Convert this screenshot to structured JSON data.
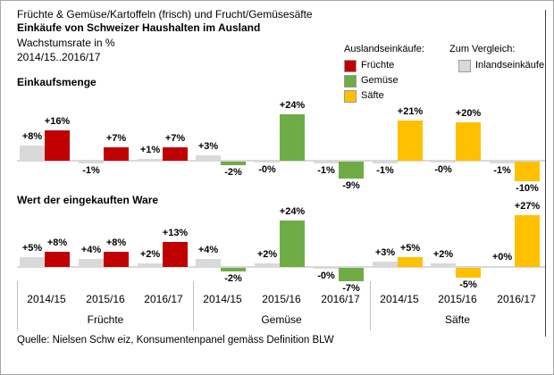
{
  "title": {
    "line1": "Früchte & Gemüse/Kartoffeln (frisch) und Frucht/Gemüsesäfte",
    "line2": "Einkäufe von Schweizer Haushalten im Ausland",
    "line3": "Wachstumsrate in %",
    "line4": "2014/15..2016/17"
  },
  "legend": {
    "foreign_header": "Auslandseinkäufe:",
    "compare_header": "Zum Vergleich:",
    "items": [
      {
        "label": "Früchte",
        "color": "#C00000"
      },
      {
        "label": "Gemüse",
        "color": "#6FAC46"
      },
      {
        "label": "Säfte",
        "color": "#FFC000"
      }
    ],
    "compare_item": {
      "label": "Inlandseinkäufe",
      "color": "#D9D9D9"
    }
  },
  "colors": {
    "inland": "#D9D9D9",
    "baseline": "#D9D9D9",
    "separator": "#BFBFBF",
    "frame": "#404040"
  },
  "chart_data": [
    {
      "type": "bar",
      "title": "Einkaufsmenge",
      "unit": "%",
      "ylim": [
        -10,
        24
      ],
      "grid": false,
      "legend_position": "top-right",
      "categories": [
        "2014/15",
        "2015/16",
        "2016/17"
      ],
      "groups": [
        {
          "name": "Früchte",
          "color": "#C00000",
          "series": [
            {
              "name": "Inlandseinkäufe",
              "values": [
                8,
                -1,
                1
              ],
              "labels": [
                "+8%",
                "-1%",
                "+1%"
              ]
            },
            {
              "name": "Auslandseinkäufe",
              "values": [
                16,
                7,
                7
              ],
              "labels": [
                "+16%",
                "+7%",
                "+7%"
              ]
            }
          ]
        },
        {
          "name": "Gemüse",
          "color": "#6FAC46",
          "series": [
            {
              "name": "Inlandseinkäufe",
              "values": [
                3,
                0,
                -1
              ],
              "labels": [
                "+3%",
                "-0%",
                "-1%"
              ]
            },
            {
              "name": "Auslandseinkäufe",
              "values": [
                -2,
                24,
                -9
              ],
              "labels": [
                "-2%",
                "+24%",
                "-9%"
              ]
            }
          ]
        },
        {
          "name": "Säfte",
          "color": "#FFC000",
          "series": [
            {
              "name": "Inlandseinkäufe",
              "values": [
                -1,
                0,
                -1
              ],
              "labels": [
                "-1%",
                "-0%",
                "-1%"
              ]
            },
            {
              "name": "Auslandseinkäufe",
              "values": [
                21,
                20,
                -10
              ],
              "labels": [
                "+21%",
                "+20%",
                "-10%"
              ]
            }
          ]
        }
      ]
    },
    {
      "type": "bar",
      "title": "Wert der eingekauften Ware",
      "unit": "%",
      "ylim": [
        -7,
        27
      ],
      "grid": false,
      "legend_position": "top-right",
      "categories": [
        "2014/15",
        "2015/16",
        "2016/17"
      ],
      "groups": [
        {
          "name": "Früchte",
          "color": "#C00000",
          "series": [
            {
              "name": "Inlandseinkäufe",
              "values": [
                5,
                4,
                2
              ],
              "labels": [
                "+5%",
                "+4%",
                "+2%"
              ]
            },
            {
              "name": "Auslandseinkäufe",
              "values": [
                8,
                8,
                13
              ],
              "labels": [
                "+8%",
                "+8%",
                "+13%"
              ]
            }
          ]
        },
        {
          "name": "Gemüse",
          "color": "#6FAC46",
          "series": [
            {
              "name": "Inlandseinkäufe",
              "values": [
                4,
                2,
                0
              ],
              "labels": [
                "+4%",
                "+2%",
                "-0%"
              ]
            },
            {
              "name": "Auslandseinkäufe",
              "values": [
                -2,
                24,
                -7
              ],
              "labels": [
                "-2%",
                "+24%",
                "-7%"
              ]
            }
          ]
        },
        {
          "name": "Säfte",
          "color": "#FFC000",
          "series": [
            {
              "name": "Inlandseinkäufe",
              "values": [
                3,
                2,
                0
              ],
              "labels": [
                "+3%",
                "+2%",
                "+0%"
              ]
            },
            {
              "name": "Auslandseinkäufe",
              "values": [
                5,
                -5,
                27
              ],
              "labels": [
                "+5%",
                "-5%",
                "+27%"
              ]
            }
          ]
        }
      ]
    }
  ],
  "footer": "Quelle: Nielsen Schw eiz, Konsumentenpanel gemäss Definition BLW"
}
